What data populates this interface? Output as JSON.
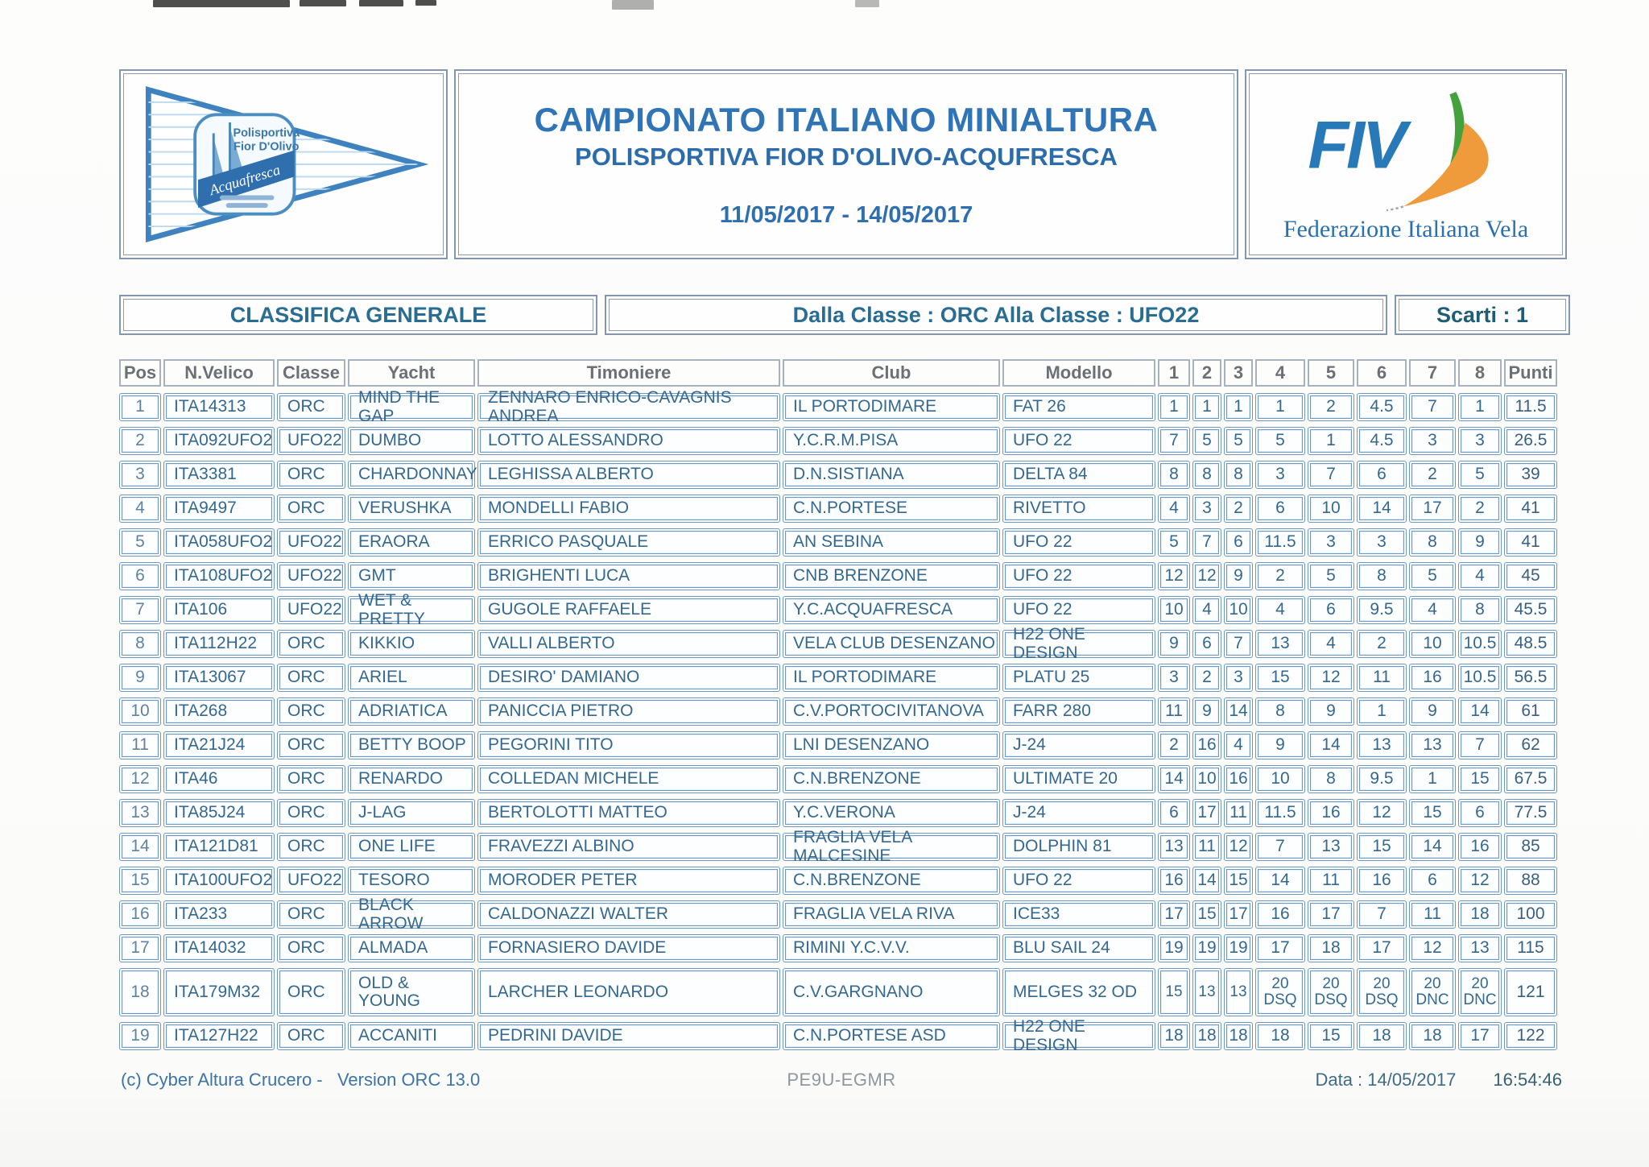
{
  "header": {
    "title": "CAMPIONATO ITALIANO MINIALTURA",
    "subtitle": "POLISPORTIVA FIOR D'OLIVO-ACQUFRESCA",
    "dates": "11/05/2017 - 14/05/2017",
    "pennant": {
      "line1": "Polisportiva",
      "line2": "Fior D'Olivo",
      "script": "Acquafresca"
    },
    "fiv": {
      "acronym": "FIV",
      "caption": "Federazione Italiana Vela",
      "colors": {
        "blue": "#2779b8",
        "green": "#44a13b",
        "orange": "#ef9b3c"
      }
    }
  },
  "classification": {
    "left": "CLASSIFICA GENERALE",
    "middle": "Dalla Classe : ORC Alla Classe : UFO22",
    "right": "Scarti : 1"
  },
  "table": {
    "columns": [
      "Pos",
      "N.Velico",
      "Classe",
      "Yacht",
      "Timoniere",
      "Club",
      "Modello",
      "1",
      "2",
      "3",
      "4",
      "5",
      "6",
      "7",
      "8",
      "Punti"
    ],
    "rows": [
      {
        "pos": "1",
        "sail": "ITA14313",
        "cls": "ORC",
        "yacht": "MIND THE GAP",
        "helm": "ZENNARO ENRICO-CAVAGNIS ANDREA",
        "club": "IL PORTODIMARE",
        "model": "FAT 26",
        "races": [
          "1",
          "1",
          "1",
          "1",
          "2",
          "4.5",
          "7",
          "1"
        ],
        "pts": "11.5"
      },
      {
        "pos": "2",
        "sail": "ITA092UFO2",
        "cls": "UFO22",
        "yacht": "DUMBO",
        "helm": "LOTTO ALESSANDRO",
        "club": "Y.C.R.M.PISA",
        "model": "UFO 22",
        "races": [
          "7",
          "5",
          "5",
          "5",
          "1",
          "4.5",
          "3",
          "3"
        ],
        "pts": "26.5"
      },
      {
        "pos": "3",
        "sail": "ITA3381",
        "cls": "ORC",
        "yacht": "CHARDONNAY",
        "helm": "LEGHISSA ALBERTO",
        "club": "D.N.SISTIANA",
        "model": "DELTA 84",
        "races": [
          "8",
          "8",
          "8",
          "3",
          "7",
          "6",
          "2",
          "5"
        ],
        "pts": "39"
      },
      {
        "pos": "4",
        "sail": "ITA9497",
        "cls": "ORC",
        "yacht": "VERUSHKA",
        "helm": "MONDELLI FABIO",
        "club": "C.N.PORTESE",
        "model": "RIVETTO",
        "races": [
          "4",
          "3",
          "2",
          "6",
          "10",
          "14",
          "17",
          "2"
        ],
        "pts": "41"
      },
      {
        "pos": "5",
        "sail": "ITA058UFO2",
        "cls": "UFO22",
        "yacht": "ERAORA",
        "helm": "ERRICO PASQUALE",
        "club": "AN SEBINA",
        "model": "UFO 22",
        "races": [
          "5",
          "7",
          "6",
          "11.5",
          "3",
          "3",
          "8",
          "9"
        ],
        "pts": "41"
      },
      {
        "pos": "6",
        "sail": "ITA108UFO2",
        "cls": "UFO22",
        "yacht": "GMT",
        "helm": "BRIGHENTI LUCA",
        "club": "CNB BRENZONE",
        "model": "UFO 22",
        "races": [
          "12",
          "12",
          "9",
          "2",
          "5",
          "8",
          "5",
          "4"
        ],
        "pts": "45"
      },
      {
        "pos": "7",
        "sail": "ITA106",
        "cls": "UFO22",
        "yacht": "WET & PRETTY",
        "helm": "GUGOLE RAFFAELE",
        "club": "Y.C.ACQUAFRESCA",
        "model": "UFO 22",
        "races": [
          "10",
          "4",
          "10",
          "4",
          "6",
          "9.5",
          "4",
          "8"
        ],
        "pts": "45.5"
      },
      {
        "pos": "8",
        "sail": "ITA112H22",
        "cls": "ORC",
        "yacht": "KIKKIO",
        "helm": "VALLI ALBERTO",
        "club": "VELA CLUB DESENZANO",
        "model": "H22 ONE DESIGN",
        "races": [
          "9",
          "6",
          "7",
          "13",
          "4",
          "2",
          "10",
          "10.5"
        ],
        "pts": "48.5"
      },
      {
        "pos": "9",
        "sail": "ITA13067",
        "cls": "ORC",
        "yacht": "ARIEL",
        "helm": "DESIRO' DAMIANO",
        "club": "IL PORTODIMARE",
        "model": "PLATU 25",
        "races": [
          "3",
          "2",
          "3",
          "15",
          "12",
          "11",
          "16",
          "10.5"
        ],
        "pts": "56.5"
      },
      {
        "pos": "10",
        "sail": "ITA268",
        "cls": "ORC",
        "yacht": "ADRIATICA",
        "helm": "PANICCIA PIETRO",
        "club": "C.V.PORTOCIVITANOVA",
        "model": "FARR 280",
        "races": [
          "11",
          "9",
          "14",
          "8",
          "9",
          "1",
          "9",
          "14"
        ],
        "pts": "61"
      },
      {
        "pos": "11",
        "sail": "ITA21J24",
        "cls": "ORC",
        "yacht": "BETTY BOOP",
        "helm": "PEGORINI TITO",
        "club": "LNI DESENZANO",
        "model": "J-24",
        "races": [
          "2",
          "16",
          "4",
          "9",
          "14",
          "13",
          "13",
          "7"
        ],
        "pts": "62"
      },
      {
        "pos": "12",
        "sail": "ITA46",
        "cls": "ORC",
        "yacht": "RENARDO",
        "helm": "COLLEDAN MICHELE",
        "club": "C.N.BRENZONE",
        "model": "ULTIMATE 20",
        "races": [
          "14",
          "10",
          "16",
          "10",
          "8",
          "9.5",
          "1",
          "15"
        ],
        "pts": "67.5"
      },
      {
        "pos": "13",
        "sail": "ITA85J24",
        "cls": "ORC",
        "yacht": "J-LAG",
        "helm": "BERTOLOTTI MATTEO",
        "club": "Y.C.VERONA",
        "model": "J-24",
        "races": [
          "6",
          "17",
          "11",
          "11.5",
          "16",
          "12",
          "15",
          "6"
        ],
        "pts": "77.5"
      },
      {
        "pos": "14",
        "sail": "ITA121D81",
        "cls": "ORC",
        "yacht": "ONE LIFE",
        "helm": "FRAVEZZI ALBINO",
        "club": "FRAGLIA VELA MALCESINE",
        "model": "DOLPHIN 81",
        "races": [
          "13",
          "11",
          "12",
          "7",
          "13",
          "15",
          "14",
          "16"
        ],
        "pts": "85"
      },
      {
        "pos": "15",
        "sail": "ITA100UFO2",
        "cls": "UFO22",
        "yacht": "TESORO",
        "helm": "MORODER PETER",
        "club": "C.N.BRENZONE",
        "model": "UFO 22",
        "races": [
          "16",
          "14",
          "15",
          "14",
          "11",
          "16",
          "6",
          "12"
        ],
        "pts": "88"
      },
      {
        "pos": "16",
        "sail": "ITA233",
        "cls": "ORC",
        "yacht": "BLACK ARROW",
        "helm": "CALDONAZZI WALTER",
        "club": "FRAGLIA VELA RIVA",
        "model": "ICE33",
        "races": [
          "17",
          "15",
          "17",
          "16",
          "17",
          "7",
          "11",
          "18"
        ],
        "pts": "100"
      },
      {
        "pos": "17",
        "sail": "ITA14032",
        "cls": "ORC",
        "yacht": "ALMADA",
        "helm": "FORNASIERO DAVIDE",
        "club": "RIMINI Y.C.V.V.",
        "model": "BLU SAIL 24",
        "races": [
          "19",
          "19",
          "19",
          "17",
          "18",
          "17",
          "12",
          "13"
        ],
        "pts": "115"
      },
      {
        "pos": "18",
        "sail": "ITA179M32",
        "cls": "ORC",
        "yacht": "OLD & YOUNG",
        "helm": "LARCHER LEONARDO",
        "club": "C.V.GARGNANO",
        "model": "MELGES 32 OD",
        "races": [
          "15",
          "13",
          "13",
          "20\nDSQ",
          "20\nDSQ",
          "20\nDSQ",
          "20\nDNC",
          "20\nDNC"
        ],
        "pts": "121"
      },
      {
        "pos": "19",
        "sail": "ITA127H22",
        "cls": "ORC",
        "yacht": "ACCANITI",
        "helm": "PEDRINI DAVIDE",
        "club": "C.N.PORTESE ASD",
        "model": "H22 ONE DESIGN",
        "races": [
          "18",
          "18",
          "18",
          "18",
          "15",
          "18",
          "18",
          "17"
        ],
        "pts": "122"
      }
    ]
  },
  "footer": {
    "left": "(c) Cyber Altura Crucero -   Version ORC 13.0",
    "center": "PE9U-EGMR",
    "right_date": "Data : 14/05/2017",
    "right_time": "16:54:46"
  }
}
